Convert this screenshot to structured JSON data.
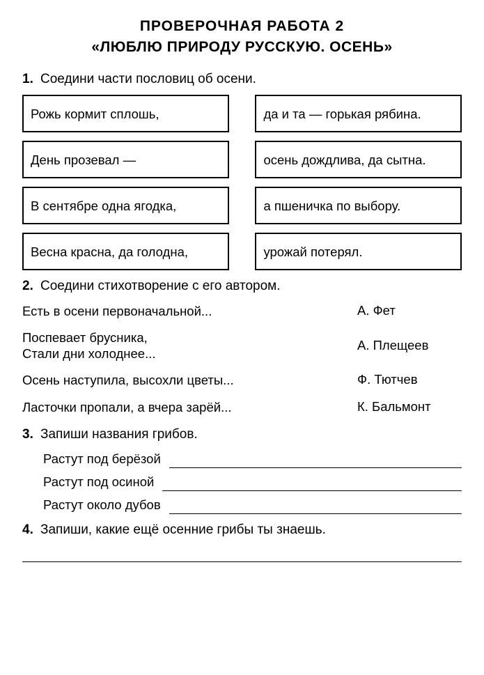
{
  "title": {
    "line1": "ПРОВЕРОЧНАЯ РАБОТА 2",
    "line2": "«ЛЮБЛЮ ПРИРОДУ РУССКУЮ. ОСЕНЬ»"
  },
  "task1": {
    "num": "1.",
    "text": "Соедини части пословиц об осени.",
    "left": [
      "Рожь кормит сплошь,",
      "День прозевал —",
      "В сентябре одна ягодка,",
      "Весна красна, да голодна,"
    ],
    "right": [
      "да и та — горькая рябина.",
      "осень дождлива, да сытна.",
      "а пшеничка по выбору.",
      "урожай потерял."
    ]
  },
  "task2": {
    "num": "2.",
    "text": "Соедини стихотворение с его автором.",
    "poems": [
      "Есть в осени первоначальной...",
      "Поспевает брусника,\nСтали дни холоднее...",
      "Осень наступила, высохли цветы...",
      "Ласточки пропали, а вчера зарёй..."
    ],
    "authors": [
      "А. Фет",
      "А. Плещеев",
      "Ф. Тютчев",
      "К. Бальмонт"
    ]
  },
  "task3": {
    "num": "3.",
    "text": "Запиши названия грибов.",
    "rows": [
      "Растут под берёзой",
      "Растут под осиной",
      "Растут около дубов"
    ]
  },
  "task4": {
    "num": "4.",
    "text": "Запиши, какие ещё осенние грибы ты знаешь."
  }
}
